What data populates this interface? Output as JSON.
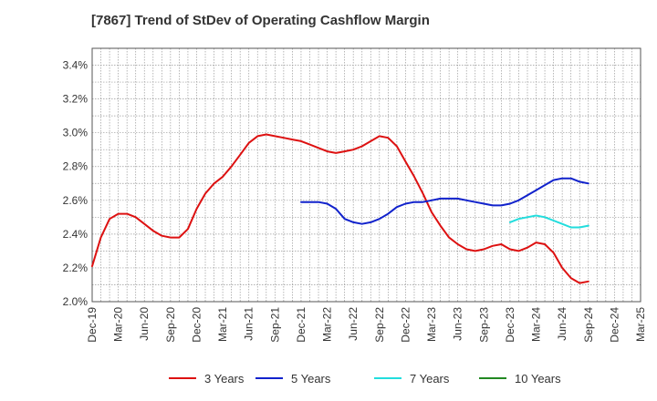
{
  "chart_data": {
    "type": "line",
    "title": "[7867]  Trend of StDev of Operating Cashflow Margin",
    "xlabel": "",
    "ylabel": "",
    "ylim": [
      2.0,
      3.5
    ],
    "y_ticks": [
      "2.0%",
      "2.2%",
      "2.4%",
      "2.6%",
      "2.8%",
      "3.0%",
      "3.2%",
      "3.4%"
    ],
    "x_ticks": [
      "Dec-19",
      "Mar-20",
      "Jun-20",
      "Sep-20",
      "Dec-20",
      "Mar-21",
      "Jun-21",
      "Sep-21",
      "Dec-21",
      "Mar-22",
      "Jun-22",
      "Sep-22",
      "Dec-22",
      "Mar-23",
      "Jun-23",
      "Sep-23",
      "Dec-23",
      "Mar-24",
      "Jun-24",
      "Sep-24",
      "Dec-24",
      "Mar-25"
    ],
    "grid": true,
    "legend_position": "bottom",
    "series": [
      {
        "name": "3 Years",
        "color": "#dd1111",
        "x": [
          "2019-12",
          "2020-01",
          "2020-02",
          "2020-03",
          "2020-04",
          "2020-05",
          "2020-06",
          "2020-07",
          "2020-08",
          "2020-09",
          "2020-10",
          "2020-11",
          "2020-12",
          "2021-01",
          "2021-02",
          "2021-03",
          "2021-04",
          "2021-05",
          "2021-06",
          "2021-07",
          "2021-08",
          "2021-09",
          "2021-10",
          "2021-11",
          "2021-12",
          "2022-01",
          "2022-02",
          "2022-03",
          "2022-04",
          "2022-05",
          "2022-06",
          "2022-07",
          "2022-08",
          "2022-09",
          "2022-10",
          "2022-11",
          "2022-12",
          "2023-01",
          "2023-02",
          "2023-03",
          "2023-04",
          "2023-05",
          "2023-06",
          "2023-07",
          "2023-08",
          "2023-09",
          "2023-10",
          "2023-11",
          "2023-12",
          "2024-01",
          "2024-02",
          "2024-03",
          "2024-04",
          "2024-05",
          "2024-06",
          "2024-07",
          "2024-08",
          "2024-09"
        ],
        "values": [
          2.21,
          2.38,
          2.49,
          2.52,
          2.52,
          2.5,
          2.46,
          2.42,
          2.39,
          2.38,
          2.38,
          2.43,
          2.55,
          2.64,
          2.7,
          2.74,
          2.8,
          2.87,
          2.94,
          2.98,
          2.99,
          2.98,
          2.97,
          2.96,
          2.95,
          2.93,
          2.91,
          2.89,
          2.88,
          2.89,
          2.9,
          2.92,
          2.95,
          2.98,
          2.97,
          2.92,
          2.83,
          2.74,
          2.64,
          2.53,
          2.45,
          2.38,
          2.34,
          2.31,
          2.3,
          2.31,
          2.33,
          2.34,
          2.31,
          2.3,
          2.32,
          2.35,
          2.34,
          2.29,
          2.2,
          2.14,
          2.11,
          2.12
        ]
      },
      {
        "name": "5 Years",
        "color": "#1122cc",
        "x": [
          "2021-12",
          "2022-01",
          "2022-02",
          "2022-03",
          "2022-04",
          "2022-05",
          "2022-06",
          "2022-07",
          "2022-08",
          "2022-09",
          "2022-10",
          "2022-11",
          "2022-12",
          "2023-01",
          "2023-02",
          "2023-03",
          "2023-04",
          "2023-05",
          "2023-06",
          "2023-07",
          "2023-08",
          "2023-09",
          "2023-10",
          "2023-11",
          "2023-12",
          "2024-01",
          "2024-02",
          "2024-03",
          "2024-04",
          "2024-05",
          "2024-06",
          "2024-07",
          "2024-08",
          "2024-09"
        ],
        "values": [
          2.59,
          2.59,
          2.59,
          2.58,
          2.55,
          2.49,
          2.47,
          2.46,
          2.47,
          2.49,
          2.52,
          2.56,
          2.58,
          2.59,
          2.59,
          2.6,
          2.61,
          2.61,
          2.61,
          2.6,
          2.59,
          2.58,
          2.57,
          2.57,
          2.58,
          2.6,
          2.63,
          2.66,
          2.69,
          2.72,
          2.73,
          2.73,
          2.71,
          2.7
        ]
      },
      {
        "name": "7 Years",
        "color": "#22dddd",
        "x": [
          "2023-12",
          "2024-01",
          "2024-02",
          "2024-03",
          "2024-04",
          "2024-05",
          "2024-06",
          "2024-07",
          "2024-08",
          "2024-09"
        ],
        "values": [
          2.47,
          2.49,
          2.5,
          2.51,
          2.5,
          2.48,
          2.46,
          2.44,
          2.44,
          2.45
        ]
      },
      {
        "name": "10 Years",
        "color": "#228822",
        "x": [],
        "values": []
      }
    ]
  }
}
